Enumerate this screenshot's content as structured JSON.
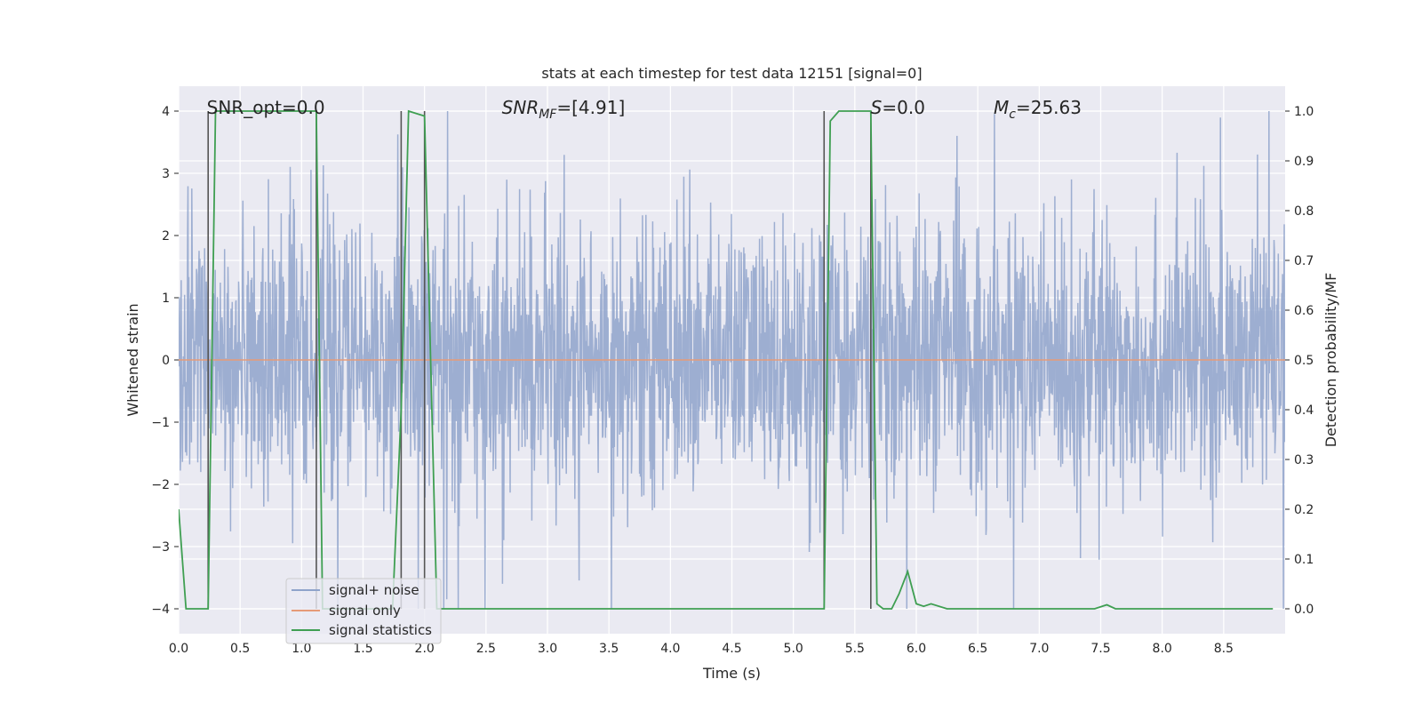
{
  "chart_data": {
    "type": "line",
    "title": "stats at each timestep for test data 12151 [signal=0]",
    "xlabel": "Time (s)",
    "ylabel_left": "Whitened strain",
    "ylabel_right": "Detection probability/MF",
    "xlim": [
      0.0,
      9.0
    ],
    "ylim_left": [
      -4.4,
      4.4
    ],
    "ylim_right": [
      -0.05,
      1.05
    ],
    "x_ticks": [
      0.0,
      0.5,
      1.0,
      1.5,
      2.0,
      2.5,
      3.0,
      3.5,
      4.0,
      4.5,
      5.0,
      5.5,
      6.0,
      6.5,
      7.0,
      7.5,
      8.0,
      8.5
    ],
    "x_tick_labels": [
      "0.0",
      "0.5",
      "1.0",
      "1.5",
      "2.0",
      "2.5",
      "3.0",
      "3.5",
      "4.0",
      "4.5",
      "5.0",
      "5.5",
      "6.0",
      "6.5",
      "7.0",
      "7.5",
      "8.0",
      "8.5"
    ],
    "y_ticks_left": [
      4,
      3,
      2,
      1,
      0,
      -1,
      -2,
      -3,
      -4
    ],
    "y_tick_labels_left": [
      "4",
      "3",
      "2",
      "1",
      "0",
      "−1",
      "−2",
      "−3",
      "−4"
    ],
    "y_ticks_right": [
      1.0,
      0.9,
      0.8,
      0.7,
      0.6,
      0.5,
      0.4,
      0.3,
      0.2,
      0.1,
      0.0
    ],
    "y_tick_labels_right": [
      "1.0",
      "0.9",
      "0.8",
      "0.7",
      "0.6",
      "0.5",
      "0.4",
      "0.3",
      "0.2",
      "0.1",
      "0.0"
    ],
    "annotations": [
      {
        "label": "SNR_opt=0.0",
        "x": 0.2,
        "y": 4.0
      },
      {
        "label": "SNR_MF=[4.91]",
        "x": 2.6,
        "y": 4.0
      },
      {
        "label": "S=0.0",
        "x": 5.6,
        "y": 4.0
      },
      {
        "label": "M_c=25.63",
        "x": 6.6,
        "y": 4.0
      }
    ],
    "vertical_lines_x": [
      0.24,
      1.12,
      1.81,
      2.0,
      5.25,
      5.63
    ],
    "series": [
      {
        "name": "signal+ noise",
        "axis": "left",
        "color": "#8fa3cb",
        "style": "noise",
        "description_range": [
          -4.0,
          4.0
        ],
        "typical_abs_peak": 2.8
      },
      {
        "name": "signal only",
        "axis": "left",
        "color": "#e69a78",
        "x": [
          0.0,
          9.0
        ],
        "y": [
          0.0,
          0.0
        ]
      },
      {
        "name": "signal statistics",
        "axis": "right",
        "color": "#3f9f52",
        "x": [
          0.0,
          0.06,
          0.19,
          0.24,
          0.3,
          1.12,
          1.17,
          1.74,
          1.81,
          1.87,
          2.0,
          2.1,
          2.15,
          3.8,
          5.25,
          5.3,
          5.37,
          5.63,
          5.68,
          5.73,
          5.8,
          5.86,
          5.93,
          6.0,
          6.06,
          6.12,
          6.25,
          7.45,
          7.55,
          7.62,
          8.9
        ],
        "y": [
          0.2,
          0.0,
          0.0,
          0.0,
          1.0,
          1.0,
          0.0,
          0.0,
          0.4,
          1.0,
          0.99,
          0.0,
          0.0,
          0.0,
          0.0,
          0.98,
          1.0,
          1.0,
          0.01,
          0.0,
          0.0,
          0.03,
          0.075,
          0.01,
          0.005,
          0.01,
          0.0,
          0.0,
          0.008,
          0.0,
          0.0
        ]
      }
    ],
    "legend": {
      "placement": "lower-left",
      "entries": [
        "signal+ noise",
        "signal only",
        "signal statistics"
      ]
    },
    "grid": true,
    "colors": {
      "axes_background": "#eaeaf2",
      "grid": "#ffffff",
      "text": "#262626"
    }
  }
}
